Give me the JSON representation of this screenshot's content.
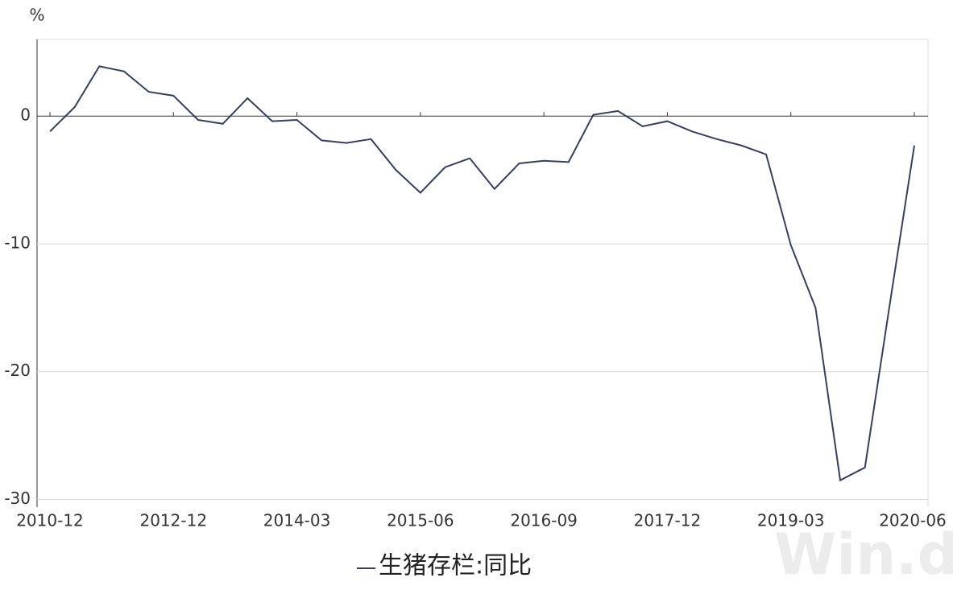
{
  "chart_data": {
    "type": "line",
    "y_unit": "%",
    "categories": [
      "2010-12",
      null,
      null,
      null,
      null,
      "2012-12",
      null,
      null,
      null,
      null,
      "2014-03",
      null,
      null,
      null,
      null,
      "2015-06",
      null,
      null,
      null,
      null,
      "2016-09",
      null,
      null,
      null,
      null,
      "2017-12",
      null,
      null,
      null,
      null,
      "2019-03",
      null,
      null,
      null,
      null,
      "2020-06"
    ],
    "series": [
      {
        "name": "生猪存栏:同比",
        "color": "#363f63",
        "values": [
          -1.2,
          0.7,
          3.9,
          3.5,
          1.9,
          1.6,
          -0.3,
          -0.6,
          1.4,
          -0.4,
          -0.3,
          -1.9,
          -2.1,
          -1.8,
          -4.2,
          -6.0,
          -4.0,
          -3.3,
          -5.7,
          -3.7,
          -3.5,
          -3.6,
          0.1,
          0.4,
          -0.8,
          -0.4,
          -1.2,
          -1.8,
          -2.3,
          -3.0,
          -10.1,
          -15.0,
          -28.5,
          -27.5,
          -14.8,
          -2.3
        ]
      }
    ],
    "ylim": [
      -30.6,
      6
    ],
    "yticks": [
      0,
      -10,
      -20,
      -30
    ],
    "grid": true,
    "watermark": "Win.d"
  }
}
